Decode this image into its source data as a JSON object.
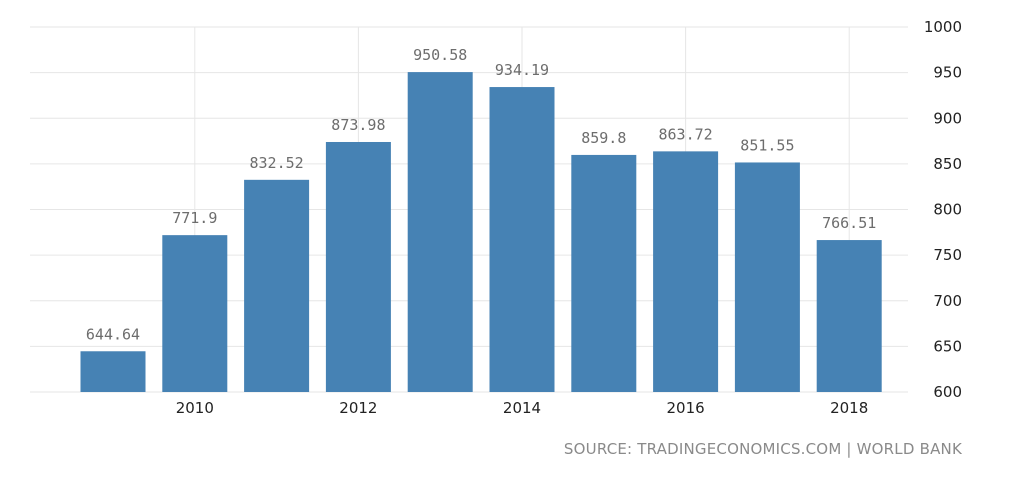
{
  "chart_data": {
    "type": "bar",
    "categories": [
      "2009",
      "2010",
      "2011",
      "2012",
      "2013",
      "2014",
      "2015",
      "2016",
      "2017",
      "2018"
    ],
    "values": [
      644.64,
      771.9,
      832.52,
      873.98,
      950.58,
      934.19,
      859.8,
      863.72,
      851.55,
      766.51
    ],
    "value_labels": [
      "644.64",
      "771.9",
      "832.52",
      "873.98",
      "950.58",
      "934.19",
      "859.8",
      "863.72",
      "851.55",
      "766.51"
    ],
    "x_tick_labels": [
      "2010",
      "2012",
      "2014",
      "2016",
      "2018"
    ],
    "y_ticks": [
      600,
      650,
      700,
      750,
      800,
      850,
      900,
      950,
      1000
    ],
    "ylim": [
      600,
      1000
    ],
    "y_axis_side": "right",
    "grid": true,
    "bar_color": "#4682b4",
    "title": "",
    "xlabel": "",
    "ylabel": ""
  },
  "source": "SOURCE: TRADINGECONOMICS.COM | WORLD BANK"
}
